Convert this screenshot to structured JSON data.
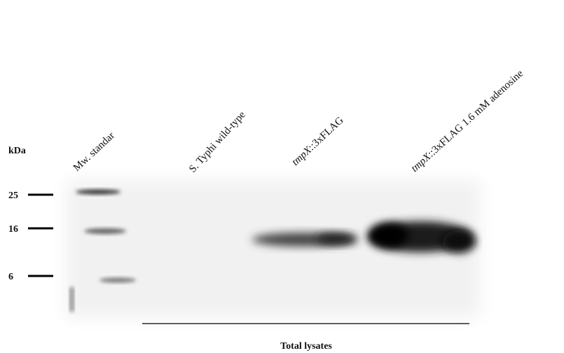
{
  "unit_label": "kDa",
  "markers": [
    "25",
    "16",
    "6"
  ],
  "lanes": [
    {
      "text": "Mw. standar"
    },
    {
      "text": "S. Typhi wild-type"
    },
    {
      "gene": "tmpX",
      "rest": "::3xFLAG"
    },
    {
      "gene": "tmpX",
      "rest": "::3xFLAG 1.6 mM adenosine"
    }
  ],
  "group_label": "Total lysates"
}
